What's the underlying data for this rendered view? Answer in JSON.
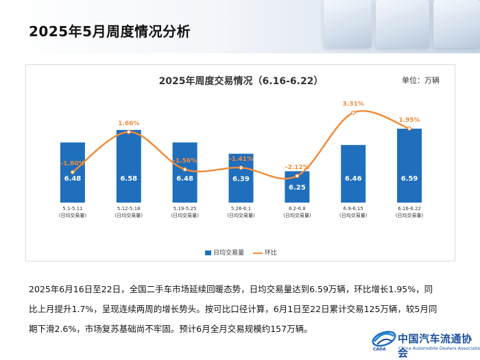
{
  "page": {
    "title": "2025年5月周度情况分析"
  },
  "chart_data": {
    "type": "bar",
    "title": "2025年周度交易情况（6.16-6.22）",
    "unit": "单位：万辆",
    "categories": [
      "5.1-5.11",
      "5.12-5.18",
      "5.19-5.25",
      "5.26-6.1",
      "6.2-6.8",
      "6.9-6.15",
      "6.16-6.22"
    ],
    "category_sublabel": "(日均交易量)",
    "series": [
      {
        "name": "日均交易量",
        "kind": "bar",
        "color": "#1f6fbd",
        "values": [
          6.48,
          6.58,
          6.48,
          6.39,
          6.25,
          6.46,
          6.59
        ],
        "labels": [
          "6.48",
          "6.58",
          "6.48",
          "6.39",
          "6.25",
          "6.46",
          "6.59"
        ]
      },
      {
        "name": "环比",
        "kind": "line",
        "color": "#f08c3a",
        "values": [
          -1.8,
          1.66,
          -1.56,
          -1.41,
          -2.12,
          3.31,
          1.95
        ],
        "labels": [
          "-1.80%",
          "1.66%",
          "-1.56%",
          "-1.41%",
          "-2.12%",
          "3.31%",
          "1.95%"
        ]
      }
    ],
    "legend_position": "bottom",
    "grid": false
  },
  "body": {
    "paragraph": "2025年6月16日至22日，全国二手车市场延续回暖态势，日均交易量达到6.59万辆，环比增长1.95%，同比上月提升1.7%，呈现连续两周的增长势头。按可比口径计算，6月1日至22日累计交易125万辆，较5月同期下滑2.6%，市场复苏基础尚不牢固。预计6月全月交易规模约157万辆。"
  },
  "logo": {
    "name_cn": "中国汽车流通协会",
    "name_en": "China Automobile Dealers Association",
    "mark_text": "CADA"
  }
}
